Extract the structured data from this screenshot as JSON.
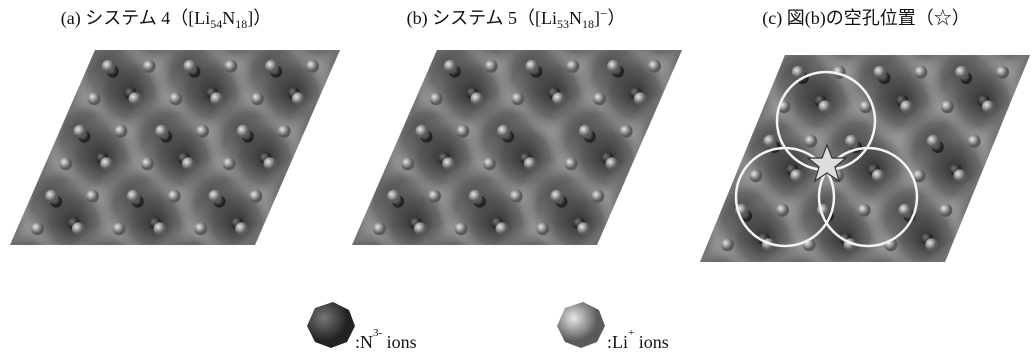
{
  "panels": [
    {
      "caption_parts": [
        "(a) システム 4（[Li",
        "54",
        "N",
        "18",
        "]）"
      ]
    },
    {
      "caption_parts": [
        "(b) システム 5（[Li",
        "53",
        "N",
        "18",
        "]",
        "−",
        "）"
      ]
    },
    {
      "caption_parts": [
        "(c) 図(b)の空孔位置（☆）"
      ]
    }
  ],
  "legend": [
    {
      "parts": [
        ":N",
        "3-",
        " ions"
      ]
    },
    {
      "parts": [
        ":Li",
        "+",
        " ions"
      ]
    }
  ]
}
